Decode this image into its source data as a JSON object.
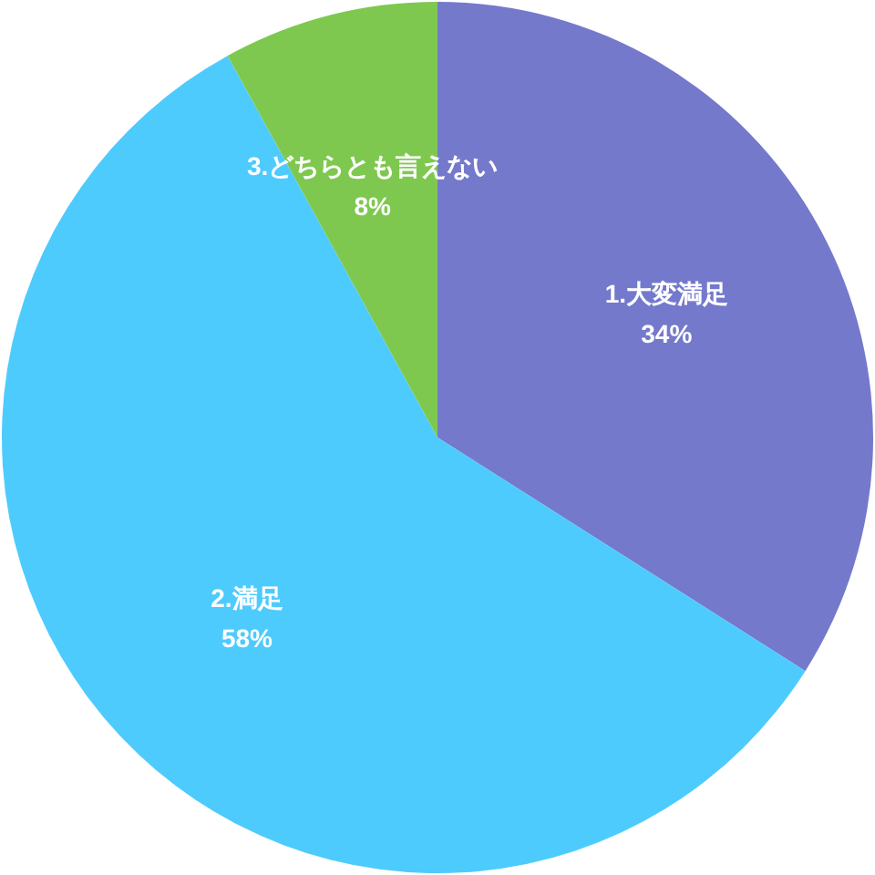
{
  "chart_data": {
    "type": "pie",
    "categories": [
      "1.大変満足",
      "2.満足",
      "3.どちらとも言えない"
    ],
    "values": [
      34,
      58,
      8
    ],
    "colors": [
      "#7479cc",
      "#4ecbfd",
      "#7ec850"
    ],
    "value_labels": [
      "34%",
      "58%",
      "8%"
    ]
  }
}
